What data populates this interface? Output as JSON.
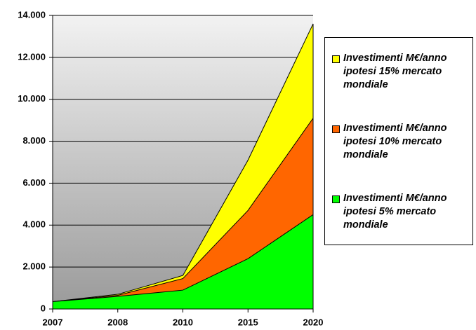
{
  "chart_data": {
    "type": "area",
    "categories": [
      "2007",
      "2008",
      "2010",
      "2015",
      "2020"
    ],
    "series": [
      {
        "name": "Investimenti M€/anno ipotesi 15% mercato mondiale",
        "color": "#ffff00",
        "values": [
          350,
          700,
          1600,
          7100,
          13600
        ]
      },
      {
        "name": "Investimenti M€/anno ipotesi 10% mercato mondiale",
        "color": "#ff6600",
        "values": [
          350,
          650,
          1450,
          4700,
          9100
        ]
      },
      {
        "name": "Investimenti M€/anno ipotesi 5% mercato mondiale",
        "color": "#00ff00",
        "values": [
          350,
          600,
          900,
          2400,
          4500
        ]
      }
    ],
    "ylim": [
      0,
      14000
    ],
    "yticks": [
      0,
      {
        "value": 2000,
        "label": "2.000"
      },
      {
        "value": 4000,
        "label": "4.000"
      },
      {
        "value": 6000,
        "label": "6.000"
      },
      {
        "value": 8000,
        "label": "8.000"
      },
      {
        "value": 10000,
        "label": "10.000"
      },
      {
        "value": 12000,
        "label": "12.000"
      },
      {
        "value": 14000,
        "label": "14.000"
      }
    ],
    "grid": true
  }
}
